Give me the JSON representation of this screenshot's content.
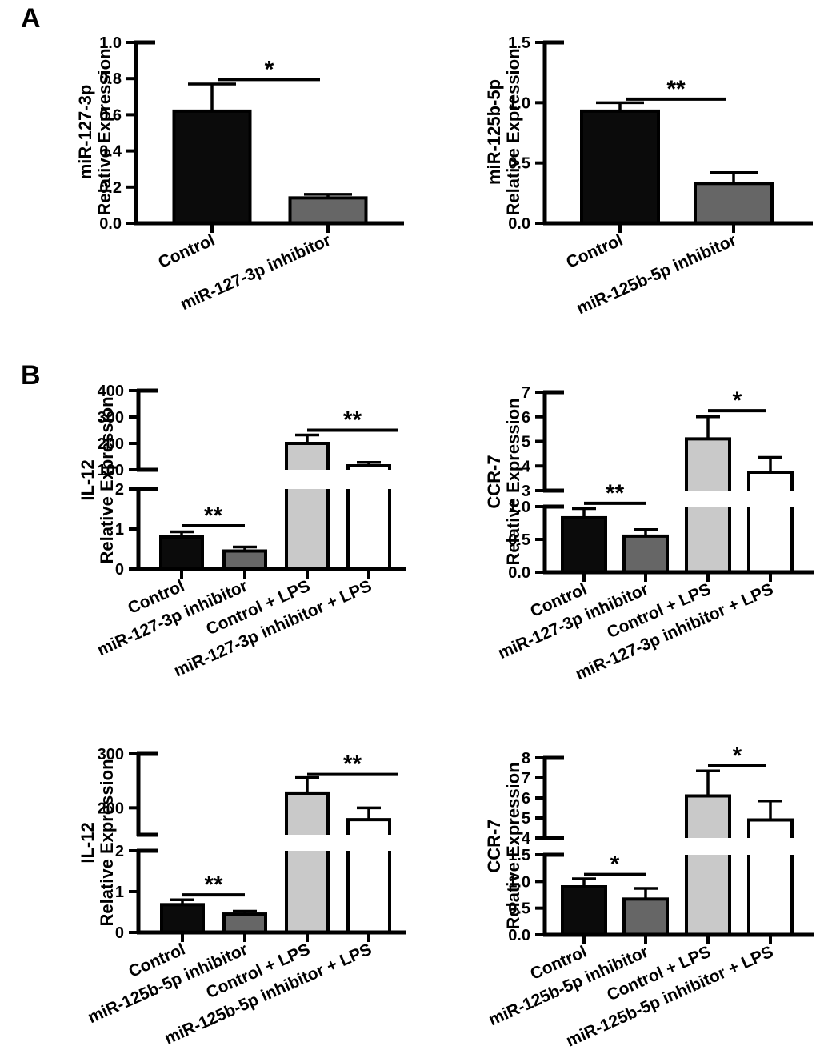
{
  "figure": {
    "panels": [
      {
        "label": "A"
      },
      {
        "label": "B"
      }
    ],
    "background": "#ffffff"
  },
  "colors": {
    "black": "#0b0b0b",
    "dark_gray": "#666666",
    "light_gray": "#c9c9c9",
    "white": "#ffffff",
    "axis": "#000000"
  },
  "chart_data": [
    {
      "id": "a-mir127",
      "panel": "A",
      "type": "bar",
      "ylabel": [
        "miR-127-3p",
        "Relative Expression"
      ],
      "categories": [
        "Control",
        "miR-127-3p inhibitor"
      ],
      "values": [
        0.62,
        0.14
      ],
      "errors": [
        0.15,
        0.02
      ],
      "bar_colors": [
        "black",
        "dark_gray"
      ],
      "ylim": [
        0,
        1.0
      ],
      "yticks": [
        0,
        0.2,
        0.4,
        0.6,
        0.8,
        1.0
      ],
      "ytick_labels": [
        "0.0",
        "0.2",
        "0.4",
        "0.6",
        "0.8",
        "1.0"
      ],
      "significance": [
        {
          "bars": [
            0,
            1
          ],
          "groups": [
            "Control",
            "miR-127-3p inhibitor"
          ],
          "label": "*",
          "line_at": 0.795
        }
      ]
    },
    {
      "id": "a-mir125",
      "panel": "A",
      "type": "bar",
      "ylabel": [
        "miR-125b-5p",
        "Relative Expression"
      ],
      "categories": [
        "Control",
        "miR-125b-5p inhibitor"
      ],
      "values": [
        0.93,
        0.33
      ],
      "errors": [
        0.07,
        0.09
      ],
      "bar_colors": [
        "black",
        "dark_gray"
      ],
      "ylim": [
        0,
        1.5
      ],
      "yticks": [
        0,
        0.5,
        1.0,
        1.5
      ],
      "ytick_labels": [
        "0.0",
        "0.5",
        "1.0",
        "1.5"
      ],
      "significance": [
        {
          "bars": [
            0,
            1
          ],
          "groups": [
            "Control",
            "miR-125b-5p inhibitor"
          ],
          "label": "**",
          "line_at": 1.03
        }
      ]
    },
    {
      "id": "b-il12-127",
      "panel": "B",
      "type": "bar-broken",
      "ylabel": [
        "IL-12",
        "Relative Expression"
      ],
      "categories": [
        "Control",
        "miR-127-3p inhibitor",
        "Control + LPS",
        "miR-127-3p inhibitor + LPS"
      ],
      "values": [
        0.8,
        0.45,
        200,
        115
      ],
      "errors": [
        0.13,
        0.1,
        32,
        13
      ],
      "bar_colors": [
        "black",
        "dark_gray",
        "light_gray",
        "white"
      ],
      "lower_axis": {
        "range": [
          0,
          2
        ],
        "ticks": [
          0,
          1,
          2
        ],
        "tick_labels": [
          "0",
          "1",
          "2"
        ]
      },
      "upper_axis": {
        "range": [
          100,
          400
        ],
        "ticks": [
          100,
          200,
          300,
          400
        ],
        "tick_labels": [
          "100",
          "200",
          "300",
          "400"
        ]
      },
      "significance": [
        {
          "bars": [
            0,
            1
          ],
          "groups": [
            "Control",
            "miR-127-3p inhibitor"
          ],
          "label": "**",
          "line_at": 1.08,
          "segment": "lower"
        },
        {
          "bars": [
            2,
            3
          ],
          "groups": [
            "Control + LPS",
            "miR-127-3p inhibitor + LPS"
          ],
          "label": "**",
          "line_at": 250,
          "segment": "upper"
        }
      ]
    },
    {
      "id": "b-ccr7-127",
      "panel": "B",
      "type": "bar-broken",
      "ylabel": [
        "CCR-7",
        "Relative Expression"
      ],
      "categories": [
        "Control",
        "miR-127-3p inhibitor",
        "Control + LPS",
        "miR-127-3p inhibitor + LPS"
      ],
      "values": [
        0.83,
        0.55,
        5.1,
        3.75
      ],
      "errors": [
        0.14,
        0.1,
        0.9,
        0.6
      ],
      "bar_colors": [
        "black",
        "dark_gray",
        "light_gray",
        "white"
      ],
      "lower_axis": {
        "range": [
          0,
          1.0
        ],
        "ticks": [
          0,
          0.5,
          1.0
        ],
        "tick_labels": [
          "0.0",
          "0.5",
          "1.0"
        ]
      },
      "upper_axis": {
        "range": [
          3,
          7
        ],
        "ticks": [
          3,
          4,
          5,
          6,
          7
        ],
        "tick_labels": [
          "3",
          "4",
          "5",
          "6",
          "7"
        ]
      },
      "significance": [
        {
          "bars": [
            0,
            1
          ],
          "groups": [
            "Control",
            "miR-127-3p inhibitor"
          ],
          "label": "**",
          "line_at": 1.05,
          "segment": "lower"
        },
        {
          "bars": [
            2,
            3
          ],
          "groups": [
            "Control + LPS",
            "miR-127-3p inhibitor + LPS"
          ],
          "label": "*",
          "line_at": 6.25,
          "segment": "upper"
        }
      ]
    },
    {
      "id": "b-il12-125",
      "panel": "B",
      "type": "bar-broken",
      "ylabel": [
        "IL-12",
        "Relative Expression"
      ],
      "categories": [
        "Control",
        "miR-125b-5p inhibitor",
        "Control + LPS",
        "miR-125b-5p inhibitor + LPS"
      ],
      "values": [
        0.68,
        0.45,
        226,
        178
      ],
      "errors": [
        0.12,
        0.07,
        30,
        22
      ],
      "bar_colors": [
        "black",
        "dark_gray",
        "light_gray",
        "white"
      ],
      "lower_axis": {
        "range": [
          0,
          2
        ],
        "ticks": [
          0,
          1,
          2
        ],
        "tick_labels": [
          "0",
          "1",
          "2"
        ]
      },
      "upper_axis": {
        "range": [
          150,
          300
        ],
        "ticks": [
          200,
          300
        ],
        "tick_labels": [
          "200",
          "300"
        ]
      },
      "significance": [
        {
          "bars": [
            0,
            1
          ],
          "groups": [
            "Control",
            "miR-125b-5p inhibitor"
          ],
          "label": "**",
          "line_at": 0.92,
          "segment": "lower"
        },
        {
          "bars": [
            2,
            3
          ],
          "groups": [
            "Control + LPS",
            "miR-125b-5p inhibitor + LPS"
          ],
          "label": "**",
          "line_at": 262,
          "segment": "upper"
        }
      ]
    },
    {
      "id": "b-ccr7-125",
      "panel": "B",
      "type": "bar-broken",
      "ylabel": [
        "CCR-7",
        "Relative Expression"
      ],
      "categories": [
        "Control",
        "miR-125b-5p inhibitor",
        "Control + LPS",
        "miR-125b-5p inhibitor + LPS"
      ],
      "values": [
        0.9,
        0.67,
        6.1,
        4.9
      ],
      "errors": [
        0.15,
        0.2,
        1.25,
        0.95
      ],
      "bar_colors": [
        "black",
        "dark_gray",
        "light_gray",
        "white"
      ],
      "lower_axis": {
        "range": [
          0,
          1.5
        ],
        "ticks": [
          0,
          0.5,
          1.0,
          1.5
        ],
        "tick_labels": [
          "0.0",
          "0.5",
          "1.0",
          "1.5"
        ]
      },
      "upper_axis": {
        "range": [
          4,
          8
        ],
        "ticks": [
          4,
          5,
          6,
          7,
          8
        ],
        "tick_labels": [
          "4",
          "5",
          "6",
          "7",
          "8"
        ]
      },
      "significance": [
        {
          "bars": [
            0,
            1
          ],
          "groups": [
            "Control",
            "miR-125b-5p inhibitor"
          ],
          "label": "*",
          "line_at": 1.13,
          "segment": "lower"
        },
        {
          "bars": [
            2,
            3
          ],
          "groups": [
            "Control + LPS",
            "miR-125b-5p inhibitor + LPS"
          ],
          "label": "*",
          "line_at": 7.6,
          "segment": "upper"
        }
      ]
    }
  ]
}
